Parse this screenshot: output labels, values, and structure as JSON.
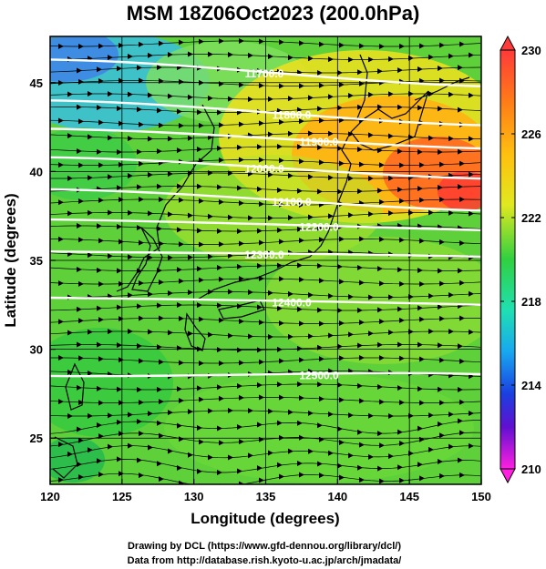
{
  "title": "MSM 18Z06Oct2023 (200.0hPa)",
  "map": {
    "xlabel": "Longitude (degrees)",
    "ylabel": "Latitude  (degrees)",
    "xlim": [
      120,
      150
    ],
    "ylim": [
      22.4,
      47.6
    ],
    "x_ticks": [
      "120",
      "125",
      "130",
      "135",
      "140",
      "145",
      "150"
    ],
    "y_ticks": [
      "25",
      "30",
      "35",
      "40",
      "45"
    ],
    "shaded_variable_range": [
      210,
      230
    ]
  },
  "contours": [
    {
      "label": "11700.0",
      "lat_w": 46.3,
      "lat_e": 44.8
    },
    {
      "label": "11800.0",
      "lat_w": 44.0,
      "lat_e": 42.6
    },
    {
      "label": "11900.0",
      "lat_w": 42.4,
      "lat_e": 41.3
    },
    {
      "label": "12000.0",
      "lat_w": 40.8,
      "lat_e": 39.6
    },
    {
      "label": "12100.0",
      "lat_w": 39.0,
      "lat_e": 37.8
    },
    {
      "label": "12200.0",
      "lat_w": 37.3,
      "lat_e": 36.7
    },
    {
      "label": "12300.0",
      "lat_w": 35.5,
      "lat_e": 35.2
    },
    {
      "label": "12400.0",
      "lat_w": 32.9,
      "lat_e": 32.5
    },
    {
      "label": "12500.0",
      "lat_w": 28.5,
      "lat_e": 28.6
    }
  ],
  "colorbar": {
    "ticks": [
      "230",
      "226",
      "222",
      "218",
      "214",
      "210"
    ],
    "colors": [
      "#ff2a55",
      "#ff6a1e",
      "#ffb014",
      "#f2e02a",
      "#a8e830",
      "#30d040",
      "#22e0a8",
      "#18b8f0",
      "#1a60e8",
      "#2a10d0",
      "#a010c0",
      "#ff20e0"
    ]
  },
  "credits": {
    "line1": "Drawing by DCL (https://www.gfd-dennou.org/library/dcl/)",
    "line2": "Data from http://database.rish.kyoto-u.ac.jp/arch/jmadata/"
  }
}
